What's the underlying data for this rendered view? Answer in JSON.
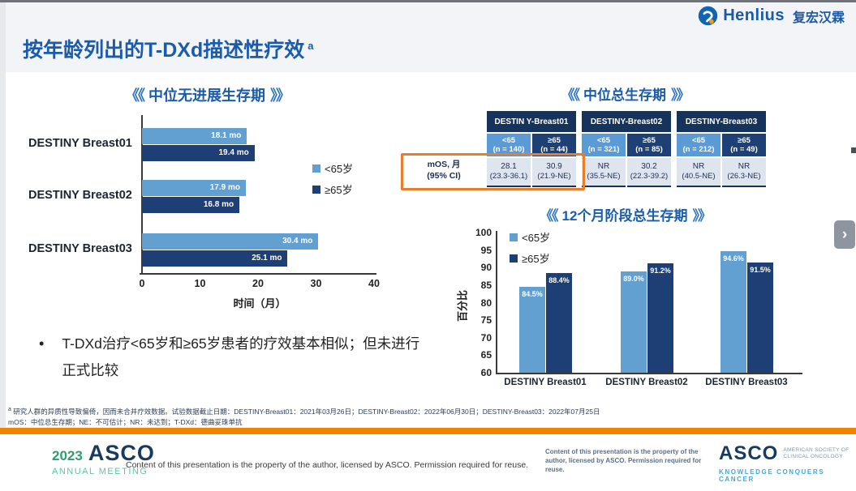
{
  "brand": {
    "name": "Henlius",
    "name_cn": "复宏汉霖"
  },
  "slide": {
    "title": "按年龄列出的T-DXd描述性疗效",
    "title_sup": "a",
    "bullet": "T-DXd治疗<65岁和≥65岁患者的疗效基本相似；但未进行正式比较",
    "footnote_sup": "a",
    "footnote_line1": "研究人群的异质性导致偏倚，因而未合并疗效数据。试验数据截止日期：DESTINY-Breast01：2021年03月26日；DESTINY-Breast02：2022年06月30日；DESTINY-Breast03：2022年07月25日",
    "footnote_line2": "mOS：中位总生存期；NE：不可估计；NR：未达到；T-DXd：德曲妥珠单抗"
  },
  "decor": {
    "chev_left": "《《",
    "chev_right": "》》"
  },
  "chart_data": [
    {
      "type": "bar",
      "orientation": "horizontal",
      "title": "中位无进展生存期",
      "categories": [
        "DESTINY Breast01",
        "DESTINY Breast02",
        "DESTINY Breast03"
      ],
      "series": [
        {
          "name": "<65岁",
          "color": "#62a0d2",
          "values": [
            18.1,
            17.9,
            30.4
          ]
        },
        {
          "name": "≥65岁",
          "color": "#1e3f76",
          "values": [
            19.4,
            16.8,
            25.1
          ]
        }
      ],
      "value_suffix": " mo",
      "xlabel": "时间（月）",
      "xlim": [
        0,
        40
      ],
      "x_ticks": [
        0,
        10,
        20,
        30,
        40
      ],
      "grid": false,
      "legend_position": "right-top"
    },
    {
      "type": "table",
      "title": "中位总生存期",
      "row_label": "mOS, 月",
      "row_label_sub": "(95% CI)",
      "highlight": "orange box around mOS label and DESTIN Y-Breast01 values",
      "groups": [
        {
          "name": "DESTIN Y-Breast01",
          "cols": [
            {
              "age": "<65",
              "n": "(n = 140)",
              "value": "28.1",
              "ci": "(23.3-36.1)"
            },
            {
              "age": "≥65",
              "n": "(n = 44)",
              "value": "30.9",
              "ci": "(21.9-NE)"
            }
          ]
        },
        {
          "name": "DESTINY-Breast02",
          "cols": [
            {
              "age": "<65",
              "n": "(n = 321)",
              "value": "NR",
              "ci": "(35.5-NE)"
            },
            {
              "age": "≥65",
              "n": "(n = 85)",
              "value": "30.2",
              "ci": "(22.3-39.2)"
            }
          ]
        },
        {
          "name": "DESTINY-Breast03",
          "cols": [
            {
              "age": "<65",
              "n": "(n = 212)",
              "value": "NR",
              "ci": "(40.5-NE)"
            },
            {
              "age": "≥65",
              "n": "(n = 49)",
              "value": "NR",
              "ci": "(26.3-NE)"
            }
          ]
        }
      ]
    },
    {
      "type": "bar",
      "orientation": "vertical",
      "title": "12个月阶段总生存期",
      "categories": [
        "DESTINY Breast01",
        "DESTINY Breast02",
        "DESTINY Breast03"
      ],
      "series": [
        {
          "name": "<65岁",
          "color": "#62a0d2",
          "values": [
            84.5,
            89.0,
            94.6
          ]
        },
        {
          "name": "≥65岁",
          "color": "#1e3f76",
          "values": [
            88.4,
            91.2,
            91.5
          ]
        }
      ],
      "value_suffix": "%",
      "ylabel": "百分比",
      "ylim": [
        60,
        100
      ],
      "y_ticks": [
        100,
        95,
        90,
        85,
        80,
        75,
        70,
        65,
        60
      ],
      "grid": false,
      "legend_position": "left-top-inside"
    }
  ],
  "footer": {
    "year": "2023",
    "asco": "ASCO",
    "annual_meeting": "ANNUAL MEETING",
    "license": "Content of this presentation is the property of the author, licensed by ASCO. Permission required for reuse.",
    "asco_right": "ASCO",
    "society_line1": "AMERICAN SOCIETY OF",
    "society_line2": "CLINICAL ONCOLOGY",
    "tagline": "KNOWLEDGE CONQUERS CANCER"
  },
  "nav": {
    "next": "›"
  },
  "colors": {
    "accent_blue": "#1a5cab",
    "bar_light": "#62a0d2",
    "bar_dark": "#1e3f76",
    "table_header": "#16335c",
    "highlight_orange": "#e87d2a",
    "footer_orange": "#f08300",
    "asco_green": "#2e9e6b",
    "asco_teal": "#5fc2a7",
    "asco_navy": "#183a5e",
    "tagline_blue": "#3fa9dc"
  }
}
